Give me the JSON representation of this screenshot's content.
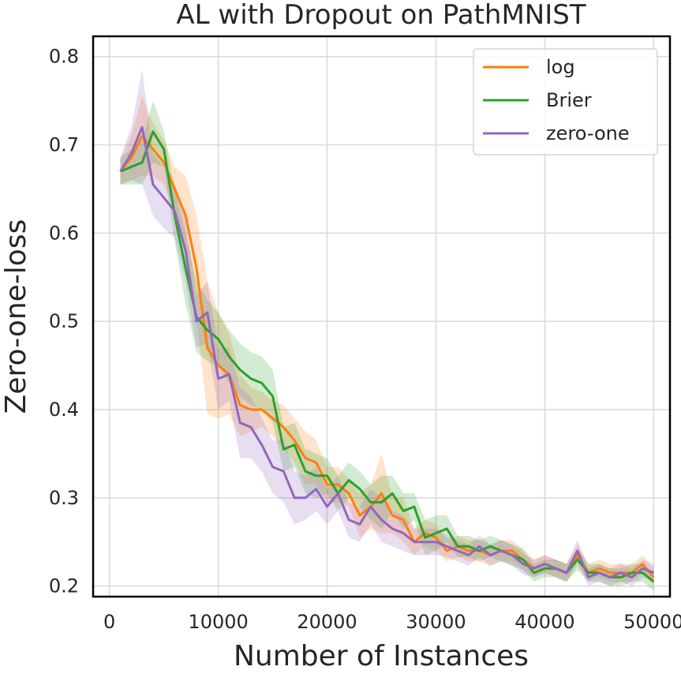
{
  "chart_data": {
    "type": "line",
    "title": "AL with Dropout on PathMNIST",
    "xlabel": "Number of Instances",
    "ylabel": "Zero-one-loss",
    "xlim": [
      -1500,
      51500
    ],
    "ylim": [
      0.188,
      0.823
    ],
    "xticks": [
      0,
      10000,
      20000,
      30000,
      40000,
      50000
    ],
    "xtick_labels": [
      "0",
      "10000",
      "20000",
      "30000",
      "40000",
      "50000"
    ],
    "yticks": [
      0.2,
      0.3,
      0.4,
      0.5,
      0.6,
      0.7,
      0.8
    ],
    "ytick_labels": [
      "0.2",
      "0.3",
      "0.4",
      "0.5",
      "0.6",
      "0.7",
      "0.8"
    ],
    "grid": true,
    "legend_position": "top-right",
    "x": [
      1000,
      2000,
      3000,
      4000,
      5000,
      6000,
      7000,
      8000,
      9000,
      10000,
      11000,
      12000,
      13000,
      14000,
      15000,
      16000,
      17000,
      18000,
      19000,
      20000,
      21000,
      22000,
      23000,
      24000,
      25000,
      26000,
      27000,
      28000,
      29000,
      30000,
      31000,
      32000,
      33000,
      34000,
      35000,
      36000,
      37000,
      38000,
      39000,
      40000,
      41000,
      42000,
      43000,
      44000,
      45000,
      46000,
      47000,
      48000,
      49000,
      50000
    ],
    "series": [
      {
        "name": "log",
        "color": "#ff7f0e",
        "values": [
          0.67,
          0.685,
          0.71,
          0.695,
          0.68,
          0.65,
          0.62,
          0.56,
          0.47,
          0.45,
          0.44,
          0.405,
          0.4,
          0.4,
          0.39,
          0.38,
          0.365,
          0.345,
          0.34,
          0.315,
          0.315,
          0.305,
          0.28,
          0.29,
          0.305,
          0.28,
          0.275,
          0.25,
          0.26,
          0.255,
          0.24,
          0.245,
          0.24,
          0.24,
          0.235,
          0.24,
          0.24,
          0.23,
          0.22,
          0.225,
          0.22,
          0.215,
          0.235,
          0.215,
          0.22,
          0.215,
          0.215,
          0.215,
          0.225,
          0.21
        ],
        "band": [
          0.015,
          0.025,
          0.045,
          0.03,
          0.025,
          0.025,
          0.045,
          0.06,
          0.075,
          0.06,
          0.045,
          0.035,
          0.025,
          0.02,
          0.02,
          0.025,
          0.025,
          0.03,
          0.025,
          0.02,
          0.02,
          0.015,
          0.025,
          0.025,
          0.045,
          0.02,
          0.025,
          0.015,
          0.015,
          0.015,
          0.012,
          0.012,
          0.012,
          0.012,
          0.012,
          0.012,
          0.012,
          0.012,
          0.01,
          0.01,
          0.01,
          0.01,
          0.012,
          0.01,
          0.01,
          0.01,
          0.01,
          0.01,
          0.01,
          0.01
        ]
      },
      {
        "name": "Brier",
        "color": "#2ca02c",
        "values": [
          0.67,
          0.675,
          0.68,
          0.715,
          0.695,
          0.62,
          0.56,
          0.505,
          0.49,
          0.48,
          0.46,
          0.445,
          0.435,
          0.43,
          0.415,
          0.355,
          0.36,
          0.33,
          0.325,
          0.325,
          0.305,
          0.32,
          0.31,
          0.295,
          0.295,
          0.305,
          0.285,
          0.29,
          0.255,
          0.26,
          0.265,
          0.245,
          0.245,
          0.24,
          0.245,
          0.24,
          0.235,
          0.23,
          0.215,
          0.22,
          0.22,
          0.215,
          0.23,
          0.215,
          0.215,
          0.21,
          0.21,
          0.215,
          0.215,
          0.205
        ],
        "band": [
          0.015,
          0.02,
          0.025,
          0.035,
          0.02,
          0.03,
          0.04,
          0.04,
          0.035,
          0.03,
          0.03,
          0.03,
          0.03,
          0.03,
          0.03,
          0.025,
          0.025,
          0.025,
          0.025,
          0.02,
          0.02,
          0.02,
          0.02,
          0.02,
          0.03,
          0.02,
          0.02,
          0.015,
          0.02,
          0.02,
          0.015,
          0.012,
          0.012,
          0.012,
          0.012,
          0.012,
          0.012,
          0.012,
          0.01,
          0.01,
          0.01,
          0.01,
          0.012,
          0.01,
          0.01,
          0.01,
          0.01,
          0.01,
          0.01,
          0.01
        ]
      },
      {
        "name": "zero-one",
        "color": "#9467bd",
        "values": [
          0.67,
          0.69,
          0.72,
          0.655,
          0.64,
          0.625,
          0.58,
          0.5,
          0.51,
          0.435,
          0.44,
          0.385,
          0.38,
          0.36,
          0.335,
          0.33,
          0.3,
          0.3,
          0.31,
          0.29,
          0.305,
          0.275,
          0.27,
          0.29,
          0.275,
          0.265,
          0.26,
          0.25,
          0.25,
          0.25,
          0.245,
          0.24,
          0.235,
          0.245,
          0.235,
          0.24,
          0.235,
          0.225,
          0.22,
          0.225,
          0.22,
          0.215,
          0.24,
          0.21,
          0.215,
          0.21,
          0.215,
          0.21,
          0.22,
          0.215
        ],
        "band": [
          0.015,
          0.03,
          0.065,
          0.035,
          0.035,
          0.03,
          0.035,
          0.03,
          0.035,
          0.035,
          0.03,
          0.04,
          0.035,
          0.03,
          0.03,
          0.035,
          0.03,
          0.025,
          0.025,
          0.02,
          0.02,
          0.02,
          0.02,
          0.02,
          0.025,
          0.02,
          0.02,
          0.015,
          0.015,
          0.015,
          0.012,
          0.012,
          0.012,
          0.012,
          0.012,
          0.012,
          0.012,
          0.012,
          0.01,
          0.01,
          0.01,
          0.01,
          0.012,
          0.01,
          0.01,
          0.01,
          0.01,
          0.01,
          0.01,
          0.01
        ]
      }
    ]
  }
}
